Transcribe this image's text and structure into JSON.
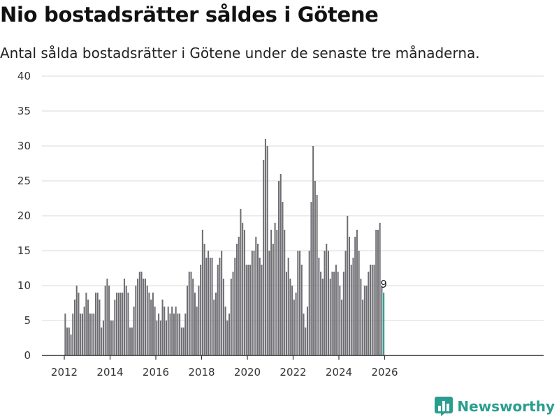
{
  "header": {
    "title": "Nio bostadsrätter såldes i Götene",
    "subtitle": "Antal sålda bostadsrätter i Götene under de senaste tre månaderna."
  },
  "brand": {
    "name": "Newsworthy",
    "color": "#2a9d8f",
    "icon": "bar-chart-logo-icon"
  },
  "colors": {
    "bar": "#6d6d72",
    "highlight": "#1a9a8e",
    "grid": "#d9d9d9",
    "axis": "#333333"
  },
  "chart_data": {
    "type": "bar",
    "title": "Nio bostadsrätter såldes i Götene",
    "subtitle": "Antal sålda bostadsrätter i Götene under de senaste tre månaderna.",
    "xlabel": "",
    "ylabel": "",
    "ylim": [
      0,
      40
    ],
    "yticks": [
      0,
      5,
      10,
      15,
      20,
      25,
      30,
      35,
      40
    ],
    "xticks": [
      2012,
      2014,
      2016,
      2018,
      2020,
      2022,
      2024,
      2026
    ],
    "x_start": "2012-01",
    "x_step": "month",
    "grid": true,
    "highlight_last": true,
    "last_label": "9",
    "values": [
      6,
      4,
      4,
      3,
      6,
      8,
      10,
      9,
      6,
      6,
      7,
      9,
      8,
      6,
      6,
      6,
      9,
      9,
      8,
      4,
      5,
      10,
      11,
      10,
      5,
      5,
      8,
      9,
      9,
      9,
      9,
      11,
      10,
      9,
      4,
      4,
      7,
      10,
      11,
      12,
      12,
      11,
      11,
      10,
      9,
      8,
      9,
      7,
      5,
      6,
      5,
      8,
      7,
      5,
      7,
      6,
      7,
      6,
      7,
      6,
      6,
      4,
      4,
      6,
      10,
      12,
      12,
      11,
      9,
      7,
      10,
      13,
      18,
      16,
      14,
      15,
      14,
      14,
      8,
      9,
      13,
      14,
      15,
      11,
      7,
      5,
      6,
      11,
      12,
      14,
      16,
      17,
      21,
      19,
      18,
      13,
      13,
      13,
      15,
      15,
      17,
      16,
      14,
      13,
      28,
      31,
      30,
      15,
      18,
      16,
      19,
      18,
      25,
      26,
      22,
      18,
      12,
      14,
      11,
      10,
      8,
      9,
      15,
      15,
      13,
      6,
      4,
      7,
      15,
      22,
      30,
      25,
      23,
      14,
      12,
      11,
      15,
      16,
      15,
      11,
      12,
      12,
      13,
      12,
      10,
      8,
      12,
      15,
      20,
      17,
      13,
      14,
      17,
      18,
      15,
      11,
      8,
      10,
      10,
      12,
      13,
      13,
      13,
      18,
      18,
      19,
      10,
      9
    ]
  }
}
